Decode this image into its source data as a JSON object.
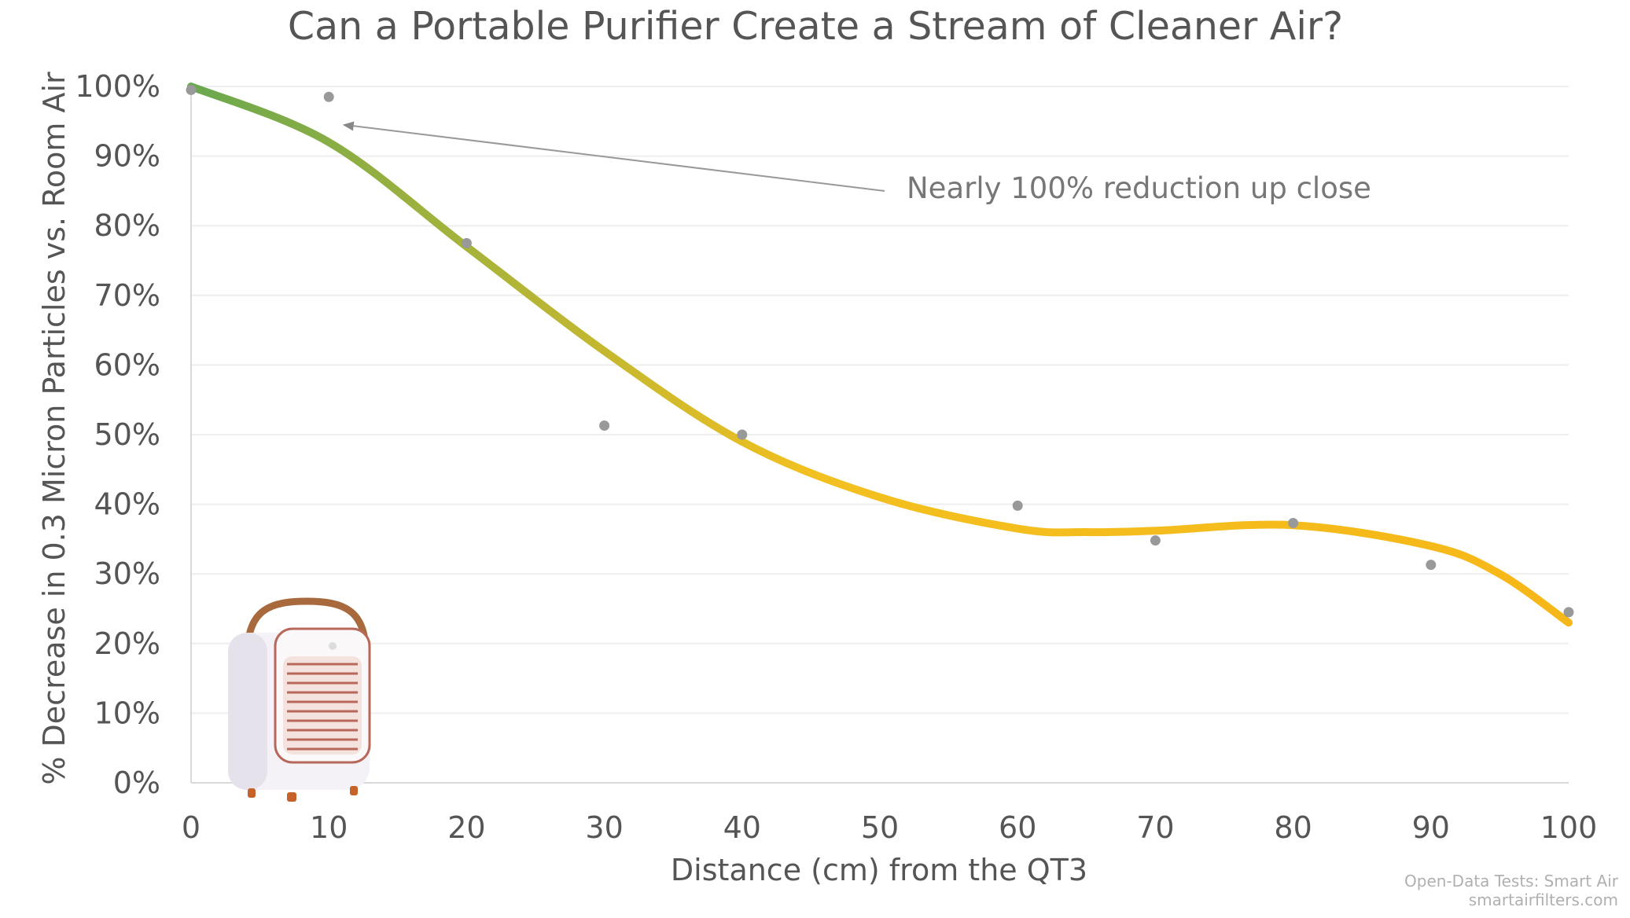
{
  "chart_data": {
    "type": "scatter",
    "title": "Can a Portable Purifier Create a Stream of Cleaner Air?",
    "xlabel": "Distance (cm) from the QT3",
    "ylabel": "% Decrease in 0.3 Micron Particles vs. Room Air",
    "xlim": [
      0,
      100
    ],
    "ylim": [
      0,
      100
    ],
    "x_ticks": [
      "0",
      "10",
      "20",
      "30",
      "40",
      "50",
      "60",
      "70",
      "80",
      "90",
      "100"
    ],
    "y_ticks": [
      "0%",
      "10%",
      "20%",
      "30%",
      "40%",
      "50%",
      "60%",
      "70%",
      "80%",
      "90%",
      "100%"
    ],
    "grid": "horizontal",
    "points": [
      {
        "x": 0,
        "y": 99.5
      },
      {
        "x": 10,
        "y": 98.5
      },
      {
        "x": 20,
        "y": 77.5
      },
      {
        "x": 30,
        "y": 51.3
      },
      {
        "x": 40,
        "y": 50.0
      },
      {
        "x": 60,
        "y": 39.8
      },
      {
        "x": 70,
        "y": 34.8
      },
      {
        "x": 80,
        "y": 37.3
      },
      {
        "x": 90,
        "y": 31.3
      },
      {
        "x": 100,
        "y": 24.5
      }
    ],
    "trend": {
      "kind": "polynomial",
      "x": [
        0,
        10,
        20,
        30,
        40,
        50,
        60,
        65,
        70,
        80,
        90,
        95,
        100
      ],
      "y": [
        100,
        92,
        77,
        62,
        49,
        41,
        36.5,
        36,
        36.2,
        37,
        34,
        30,
        23
      ],
      "color_start": "#6aa84f",
      "color_end": "#f6b818"
    },
    "annotation": {
      "text": "Nearly 100% reduction up close",
      "x": 11,
      "y": 94.5
    },
    "source": [
      "Open-Data Tests: Smart Air",
      "smartairfilters.com"
    ]
  },
  "colors": {
    "text": "#555555",
    "point": "#999999",
    "grid": "#eeeeee"
  },
  "image": {
    "icon": "portable-air-purifier-icon"
  }
}
